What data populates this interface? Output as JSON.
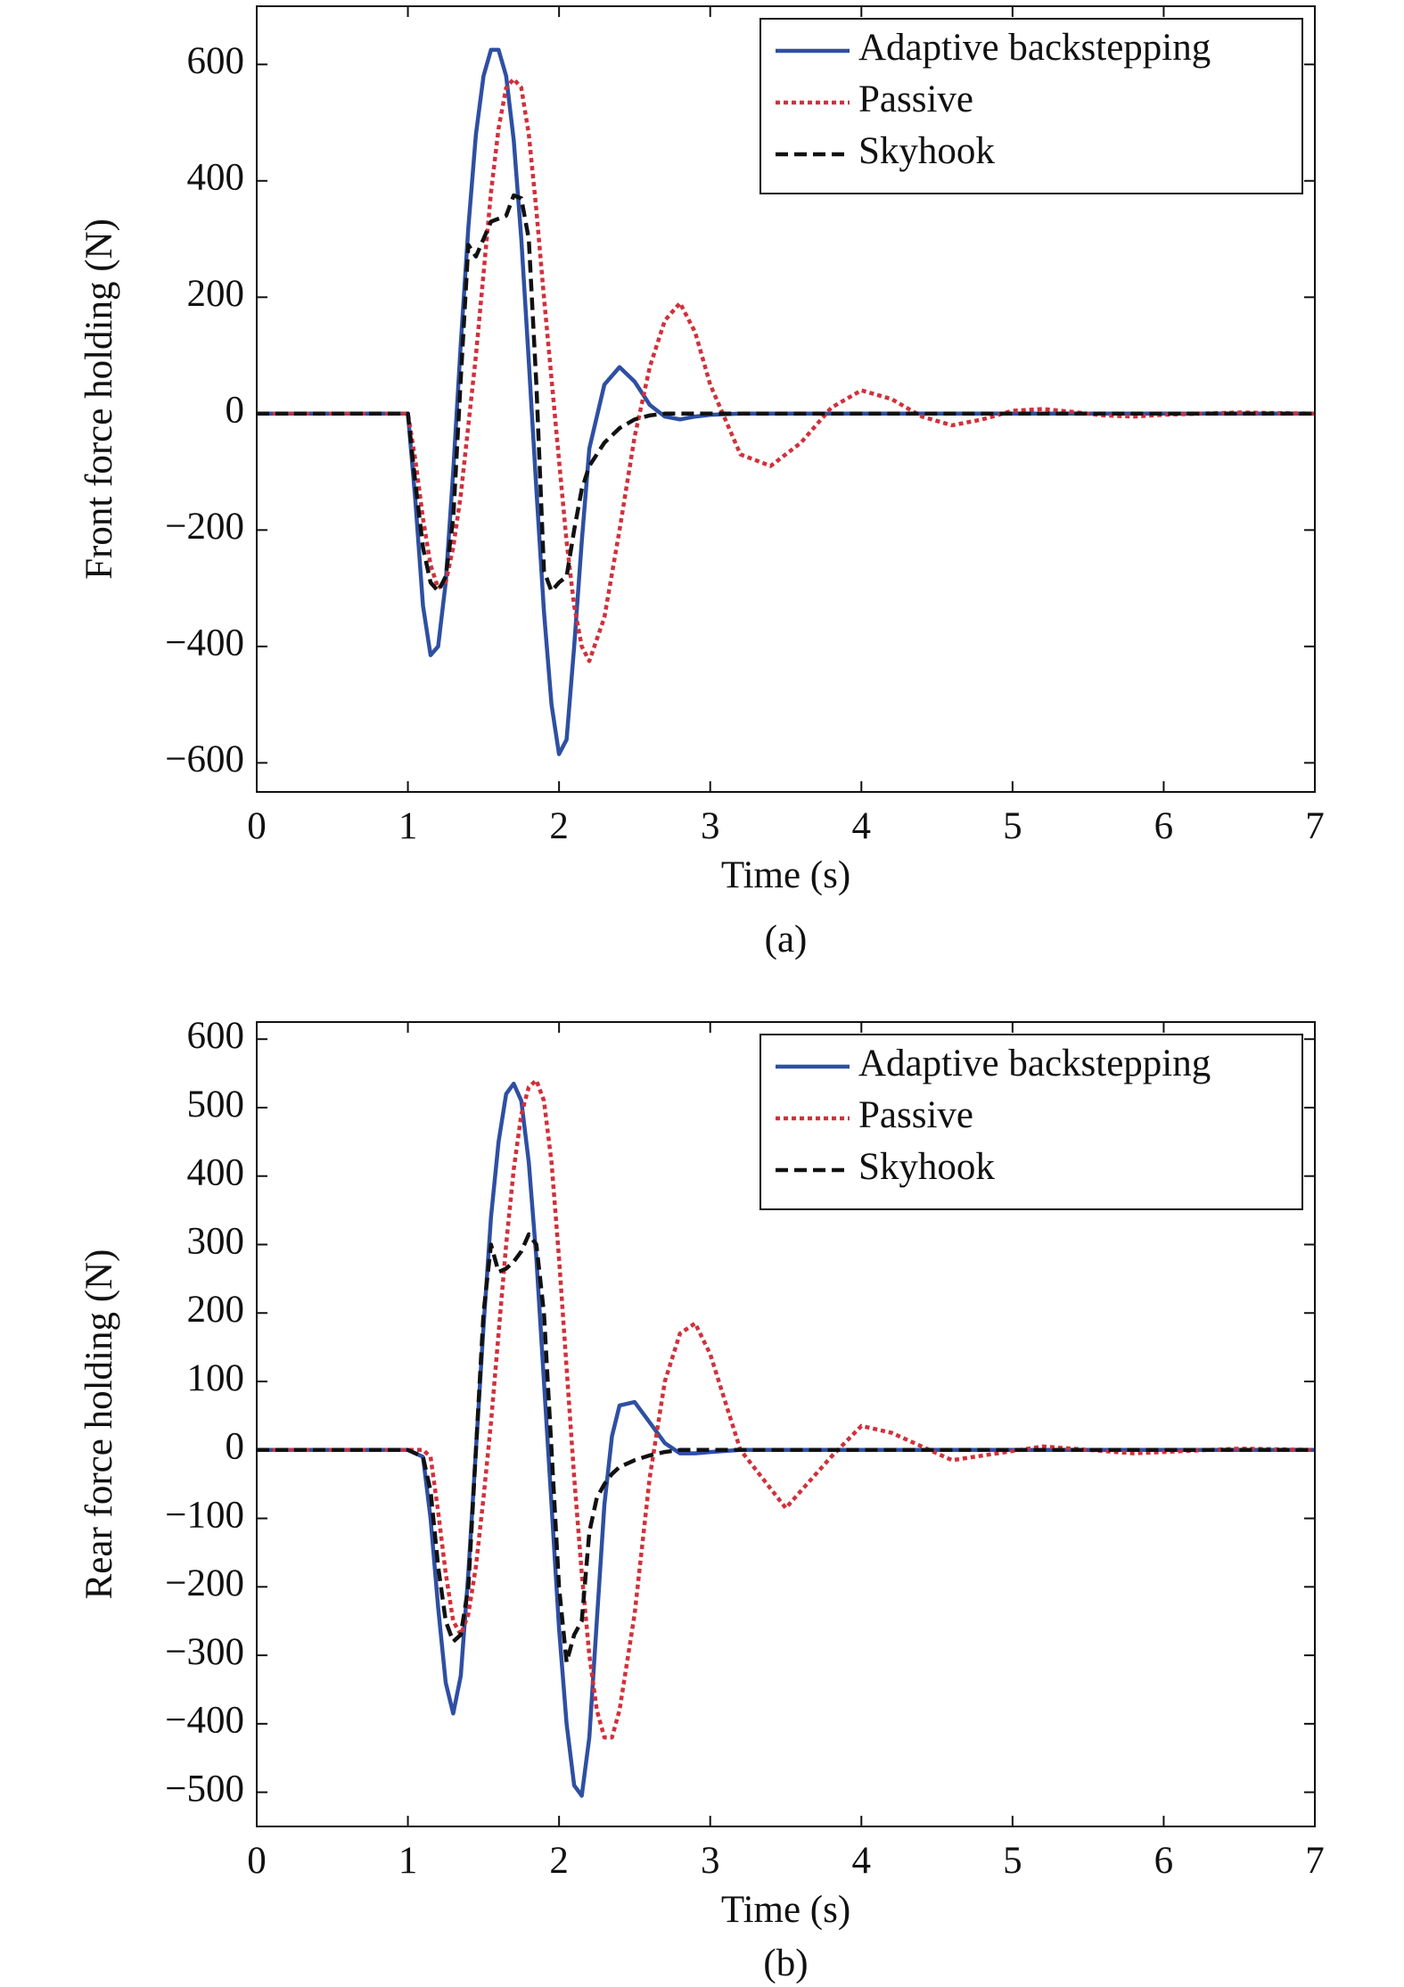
{
  "chart_data": [
    {
      "type": "line",
      "ylabel": "Front force holding (N)",
      "xlabel": "Time (s)",
      "caption": "(a)",
      "xlim": [
        0,
        7
      ],
      "ylim": [
        -650,
        700
      ],
      "xticks": [
        0,
        1,
        2,
        3,
        4,
        5,
        6,
        7
      ],
      "yticks": [
        {
          "value": -600,
          "label": "−600"
        },
        {
          "value": -400,
          "label": "−400"
        },
        {
          "value": -200,
          "label": "−200"
        },
        0,
        200,
        400,
        600
      ],
      "legend": "upper right",
      "x": [
        0,
        1,
        1.05,
        1.1,
        1.15,
        1.2,
        1.25,
        1.3,
        1.35,
        1.4,
        1.45,
        1.5,
        1.55,
        1.6,
        1.65,
        1.7,
        1.75,
        1.8,
        1.85,
        1.9,
        1.95,
        2.0,
        2.05,
        2.1,
        2.15,
        2.2,
        2.3,
        2.4,
        2.5,
        2.6,
        2.7,
        2.8,
        2.9,
        3.0,
        3.2,
        3.4,
        3.6,
        3.8,
        4.0,
        4.2,
        4.4,
        4.6,
        4.8,
        5.0,
        5.2,
        5.4,
        5.6,
        5.8,
        6.0,
        6.5,
        7.0
      ],
      "series": [
        {
          "name": "Adaptive backstepping",
          "color": "#2e4fa3",
          "linestyle": "solid",
          "values": [
            0,
            0,
            -150,
            -330,
            -415,
            -400,
            -290,
            -100,
            120,
            320,
            480,
            580,
            625,
            625,
            580,
            470,
            300,
            90,
            -130,
            -340,
            -500,
            -585,
            -560,
            -400,
            -220,
            -60,
            50,
            80,
            55,
            15,
            -5,
            -10,
            -5,
            -2,
            0,
            0,
            0,
            0,
            0,
            0,
            0,
            0,
            0,
            0,
            0,
            0,
            0,
            0,
            0,
            0,
            0
          ]
        },
        {
          "name": "Passive",
          "color": "#d0313b",
          "linestyle": "dotted",
          "values": [
            0,
            0,
            -80,
            -180,
            -260,
            -300,
            -290,
            -230,
            -140,
            -20,
            100,
            240,
            380,
            490,
            560,
            575,
            560,
            480,
            350,
            200,
            60,
            -80,
            -220,
            -330,
            -400,
            -425,
            -350,
            -200,
            -40,
            80,
            160,
            190,
            140,
            50,
            -70,
            -90,
            -50,
            10,
            40,
            25,
            -5,
            -20,
            -10,
            5,
            8,
            3,
            -3,
            -5,
            -2,
            2,
            0
          ]
        },
        {
          "name": "Skyhook",
          "color": "#111111",
          "linestyle": "dashed",
          "values": [
            0,
            0,
            -120,
            -230,
            -290,
            -305,
            -280,
            -180,
            60,
            290,
            270,
            300,
            330,
            335,
            340,
            375,
            370,
            300,
            50,
            -270,
            -305,
            -290,
            -280,
            -200,
            -130,
            -90,
            -50,
            -25,
            -10,
            -3,
            0,
            0,
            0,
            0,
            0,
            0,
            0,
            0,
            0,
            0,
            0,
            0,
            0,
            0,
            0,
            0,
            0,
            0,
            0,
            0,
            0
          ]
        }
      ]
    },
    {
      "type": "line",
      "ylabel": "Rear force holding (N)",
      "xlabel": "Time (s)",
      "caption": "(b)",
      "xlim": [
        0,
        7
      ],
      "ylim": [
        -550,
        625
      ],
      "xticks": [
        0,
        1,
        2,
        3,
        4,
        5,
        6,
        7
      ],
      "yticks": [
        {
          "value": -500,
          "label": "−500"
        },
        {
          "value": -400,
          "label": "−400"
        },
        {
          "value": -300,
          "label": "−300"
        },
        {
          "value": -200,
          "label": "−200"
        },
        {
          "value": -100,
          "label": "−100"
        },
        0,
        100,
        200,
        300,
        400,
        500,
        600
      ],
      "legend": "upper right",
      "x": [
        0,
        1.0,
        1.1,
        1.15,
        1.2,
        1.25,
        1.3,
        1.35,
        1.4,
        1.45,
        1.5,
        1.55,
        1.6,
        1.65,
        1.7,
        1.75,
        1.8,
        1.85,
        1.9,
        1.95,
        2.0,
        2.05,
        2.1,
        2.15,
        2.2,
        2.25,
        2.3,
        2.35,
        2.4,
        2.5,
        2.6,
        2.7,
        2.8,
        2.9,
        3.0,
        3.2,
        3.5,
        3.8,
        4.0,
        4.2,
        4.6,
        5.2,
        5.8,
        6.5,
        7.0
      ],
      "series": [
        {
          "name": "Adaptive backstepping",
          "color": "#2e4fa3",
          "linestyle": "solid",
          "values": [
            0,
            0,
            -10,
            -100,
            -230,
            -340,
            -385,
            -330,
            -180,
            0,
            180,
            340,
            450,
            520,
            535,
            510,
            420,
            280,
            100,
            -80,
            -260,
            -400,
            -490,
            -505,
            -420,
            -250,
            -80,
            20,
            65,
            70,
            40,
            10,
            -5,
            -5,
            -3,
            0,
            0,
            0,
            0,
            0,
            0,
            0,
            0,
            0,
            0
          ]
        },
        {
          "name": "Passive",
          "color": "#d0313b",
          "linestyle": "dotted",
          "values": [
            0,
            0,
            0,
            -10,
            -90,
            -180,
            -250,
            -270,
            -240,
            -170,
            -70,
            40,
            170,
            300,
            410,
            490,
            530,
            540,
            510,
            420,
            280,
            120,
            -40,
            -180,
            -300,
            -380,
            -420,
            -420,
            -380,
            -240,
            -40,
            100,
            170,
            185,
            140,
            0,
            -85,
            -10,
            35,
            25,
            -15,
            5,
            -5,
            2,
            0
          ]
        },
        {
          "name": "Skyhook",
          "color": "#111111",
          "linestyle": "dashed",
          "values": [
            0,
            0,
            -10,
            -60,
            -170,
            -250,
            -280,
            -270,
            -200,
            0,
            200,
            300,
            260,
            265,
            275,
            290,
            315,
            300,
            200,
            0,
            -200,
            -310,
            -270,
            -250,
            -120,
            -70,
            -50,
            -35,
            -25,
            -15,
            -8,
            -3,
            0,
            0,
            0,
            0,
            0,
            0,
            0,
            0,
            0,
            0,
            0,
            0,
            0
          ]
        }
      ]
    }
  ]
}
